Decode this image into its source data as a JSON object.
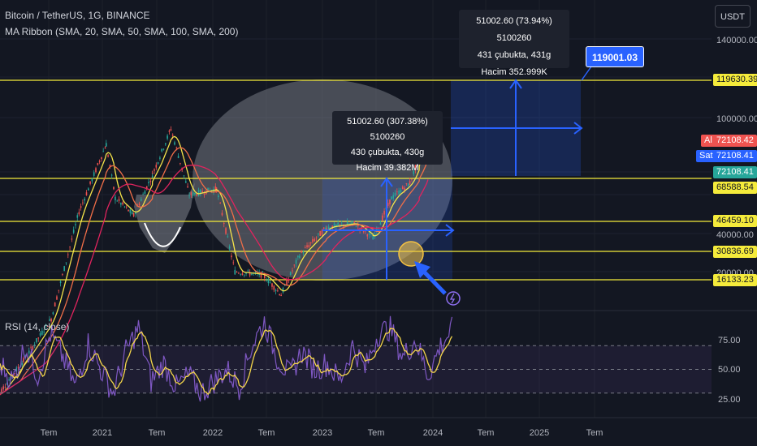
{
  "header": {
    "symbol": "Bitcoin / TetherUS, 1G, BINANCE",
    "indicator": "MA Ribbon (SMA, 20, SMA, 50, SMA, 100, SMA, 200)",
    "rsi_label": "RSI (14, close)"
  },
  "currency_button": "USDT",
  "colors": {
    "background": "#131722",
    "candle_up": "#26a69a",
    "candle_down": "#ef5350",
    "ma20": "#f5e44a",
    "ma50": "#f06e48",
    "ma100": "#e0245e",
    "level_line": "#f5eb3b",
    "measure_box": "#2962ff",
    "rsi_line": "#7e57c2",
    "rsi_avg": "#f5d64a"
  },
  "chart_data": {
    "type": "candlestick",
    "price_axis": {
      "scale": "log",
      "ticks": [
        "140000.00",
        "100000.00",
        "40000.00",
        "20000.00"
      ]
    },
    "time_axis": {
      "ticks": [
        "Tem",
        "2021",
        "Tem",
        "2022",
        "Tem",
        "2023",
        "Tem",
        "2024",
        "Tem",
        "2025",
        "Tem"
      ]
    },
    "price_series_approx": [
      [
        "2020-04",
        7000
      ],
      [
        "2020-07",
        9500
      ],
      [
        "2020-10",
        13500
      ],
      [
        "2021-01",
        33000
      ],
      [
        "2021-04",
        58000
      ],
      [
        "2021-05",
        37000
      ],
      [
        "2021-07",
        32000
      ],
      [
        "2021-09",
        45000
      ],
      [
        "2021-11",
        66000
      ],
      [
        "2022-01",
        38000
      ],
      [
        "2022-04",
        40000
      ],
      [
        "2022-06",
        20000
      ],
      [
        "2022-09",
        19500
      ],
      [
        "2022-11",
        16500
      ],
      [
        "2023-01",
        23000
      ],
      [
        "2023-04",
        29000
      ],
      [
        "2023-07",
        30000
      ],
      [
        "2023-09",
        26500
      ],
      [
        "2023-11",
        37000
      ],
      [
        "2024-01",
        42000
      ],
      [
        "2024-02",
        52000
      ],
      [
        "2024-03",
        72108.41
      ]
    ],
    "horizontal_levels": [
      "119630.39",
      "68588.54",
      "46459.10",
      "30836.69",
      "16133.23"
    ],
    "price_labels": {
      "ask_tag": "Al",
      "ask_value": "72108.42",
      "bid_tag": "Sat",
      "bid_value": "72108.41",
      "last_value": "72108.41"
    },
    "measure_1": {
      "line1": "51002.60 (307.38%) 5100260",
      "line2": "430 çubukta, 430g",
      "line3": "Hacim 39.382M"
    },
    "measure_2": {
      "line1": "51002.60 (73.94%) 5100260",
      "line2": "431 çubukta, 431g",
      "line3": "Hacim 352.999K"
    },
    "target_label": "119001.03",
    "rsi": {
      "ticks": [
        "75.00",
        "50.00",
        "25.00"
      ],
      "bands": [
        70,
        30
      ],
      "series_approx": [
        55,
        40,
        70,
        45,
        80,
        60,
        35,
        72,
        50,
        30,
        65,
        85,
        40,
        55,
        35,
        45,
        30,
        40,
        50,
        35,
        70,
        90,
        60,
        45,
        65,
        50,
        55,
        40,
        70,
        50,
        80,
        85,
        60,
        75,
        45,
        70,
        85
      ]
    }
  }
}
